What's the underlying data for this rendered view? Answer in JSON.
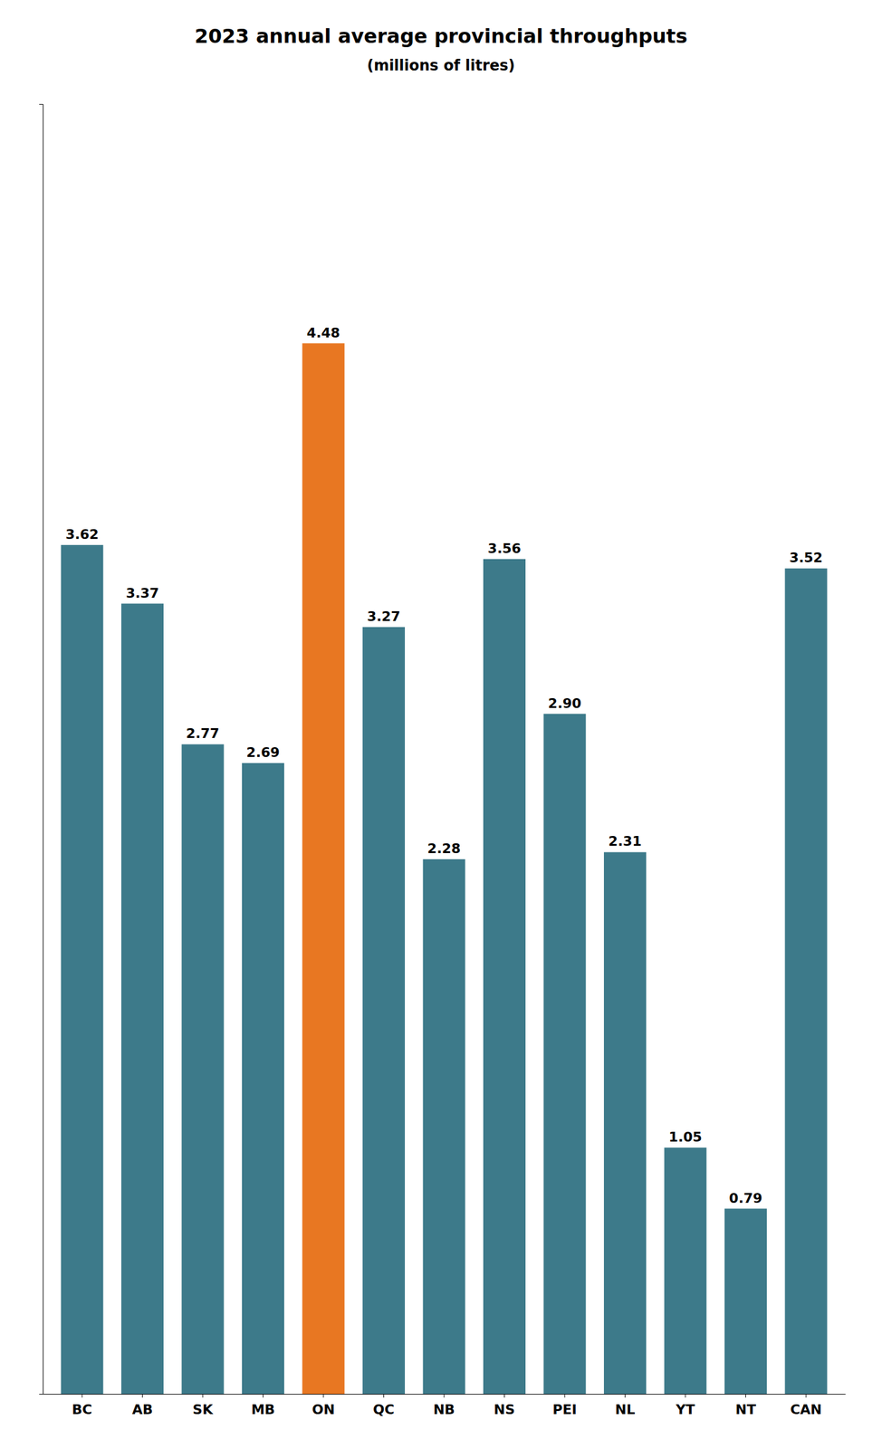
{
  "chart_data": {
    "type": "bar",
    "title": "2023 annual average provincial throughputs",
    "subtitle": "(millions of litres)",
    "categories": [
      "BC",
      "AB",
      "SK",
      "MB",
      "ON",
      "QC",
      "NB",
      "NS",
      "PEI",
      "NL",
      "YT",
      "NT",
      "CAN"
    ],
    "values": [
      3.62,
      3.37,
      2.77,
      2.69,
      4.48,
      3.27,
      2.28,
      3.56,
      2.9,
      2.31,
      1.05,
      0.79,
      3.52
    ],
    "value_labels": [
      "3.62",
      "3.37",
      "2.77",
      "2.69",
      "4.48",
      "3.27",
      "2.28",
      "3.56",
      "2.90",
      "2.31",
      "1.05",
      "0.79",
      "3.52"
    ],
    "colors": [
      "#3d7a8a",
      "#3d7a8a",
      "#3d7a8a",
      "#3d7a8a",
      "#e87722",
      "#3d7a8a",
      "#3d7a8a",
      "#3d7a8a",
      "#3d7a8a",
      "#3d7a8a",
      "#3d7a8a",
      "#3d7a8a",
      "#3d7a8a"
    ],
    "ylim": [
      0,
      5.5
    ],
    "grid": false,
    "data_labels": true,
    "tick_labels": "x"
  }
}
